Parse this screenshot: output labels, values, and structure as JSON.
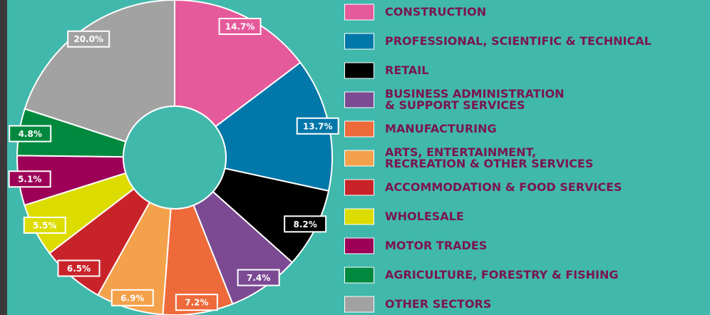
{
  "chart_data": {
    "type": "donut",
    "categories": [
      "CONSTRUCTION",
      "PROFESSIONAL, SCIENTIFIC & TECHNICAL",
      "RETAIL",
      "BUSINESS ADMINISTRATION\n& SUPPORT SERVICES",
      "MANUFACTURING",
      "ARTS, ENTERTAINMENT,\nRECREATION & OTHER SERVICES",
      "ACCOMMODATION & FOOD SERVICES",
      "WHOLESALE",
      "MOTOR TRADES",
      "AGRICULTURE, FORESTRY & FISHING",
      "OTHER SECTORS"
    ],
    "values": [
      14.7,
      13.7,
      8.2,
      7.4,
      7.2,
      6.9,
      6.5,
      5.5,
      5.1,
      4.8,
      20.0
    ],
    "value_labels": [
      "14.7%",
      "13.7%",
      "8.2%",
      "7.4%",
      "7.2%",
      "6.9%",
      "6.5%",
      "5.5%",
      "5.1%",
      "4.8%",
      "20.0%"
    ],
    "colors": [
      "#e55a9a",
      "#0277a9",
      "#000000",
      "#7b4a93",
      "#ee6a3a",
      "#f4a14b",
      "#c9232a",
      "#dcdc00",
      "#9c0057",
      "#00893e",
      "#a2a2a2"
    ]
  }
}
